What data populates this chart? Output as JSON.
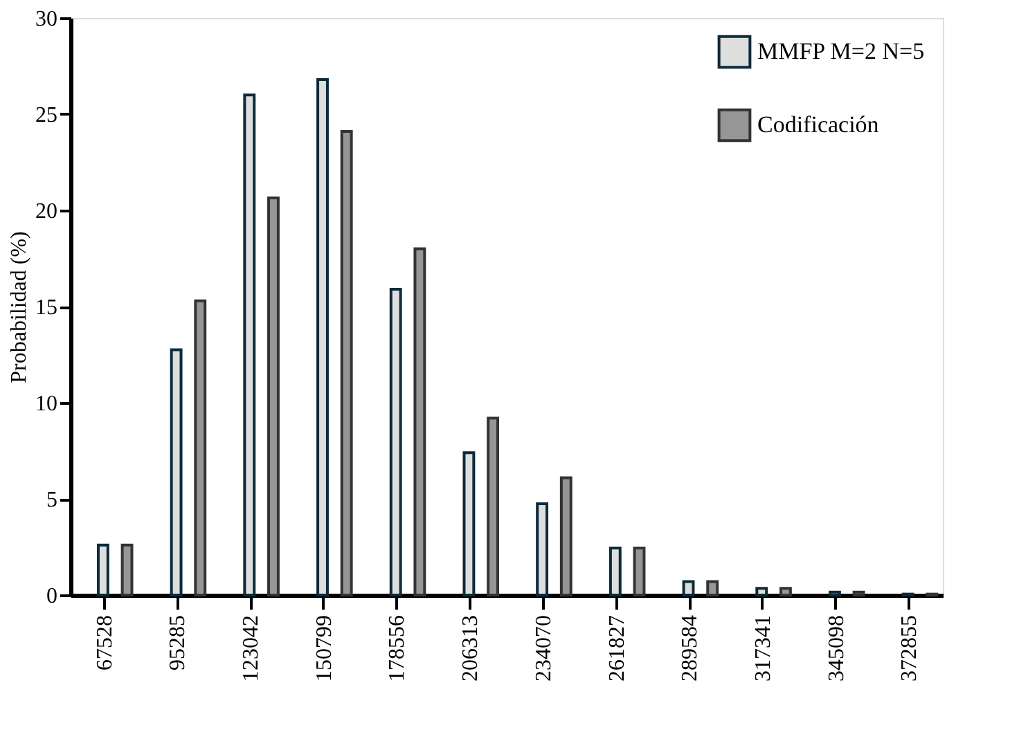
{
  "chart_data": {
    "type": "bar",
    "ylabel": "Probabilidad (%)",
    "categories": [
      "67528",
      "95285",
      "123042",
      "150799",
      "178556",
      "206313",
      "234070",
      "261827",
      "289584",
      "317341",
      "345098",
      "372855"
    ],
    "series": [
      {
        "name": "MMFP M=2 N=5",
        "color": "#dedede",
        "values": [
          2.6,
          12.75,
          26.0,
          26.8,
          15.9,
          7.4,
          4.75,
          2.45,
          0.7,
          0.35,
          0.15,
          0.05
        ]
      },
      {
        "name": "Codificación",
        "color": "#969696",
        "values": [
          2.6,
          15.3,
          20.65,
          24.1,
          18.0,
          9.2,
          6.1,
          2.45,
          0.7,
          0.35,
          0.15,
          0.05
        ]
      }
    ],
    "ylim": [
      0,
      30
    ],
    "yticks": [
      0,
      5,
      10,
      15,
      20,
      25,
      30
    ],
    "grid": false,
    "legend": "top right"
  }
}
